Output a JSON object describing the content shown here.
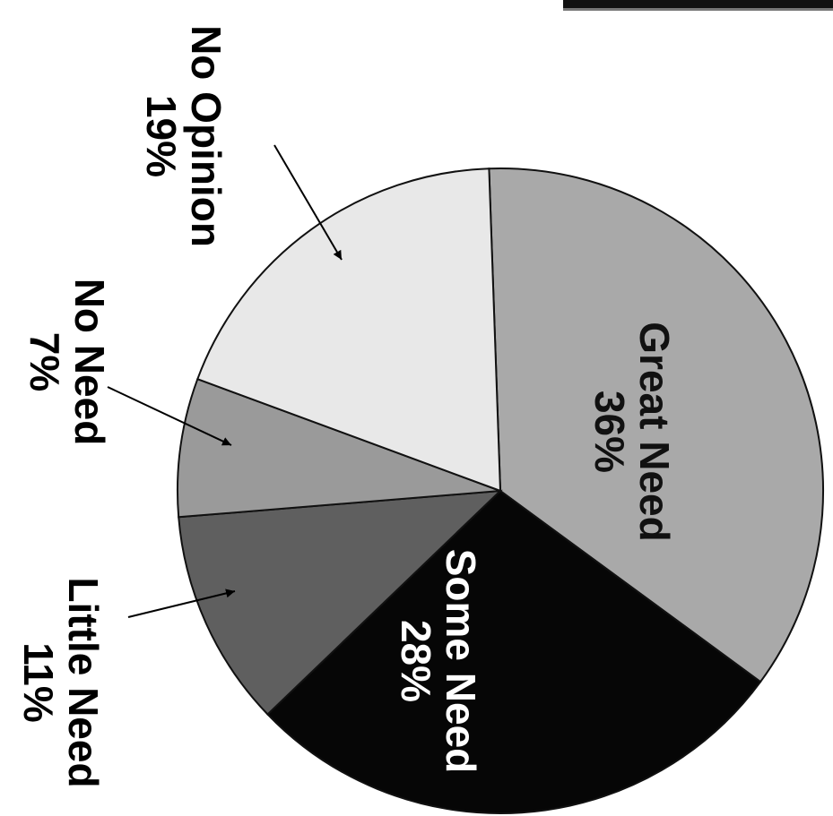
{
  "chart_data": {
    "type": "pie",
    "slices": [
      {
        "label": "Great Need",
        "pct_text": "36%",
        "value": 36,
        "color": "#a9a9a9"
      },
      {
        "label": "Some Need",
        "pct_text": "28%",
        "value": 28,
        "color": "#060606"
      },
      {
        "label": "Little Need",
        "pct_text": "11%",
        "value": 11,
        "color": "#5f5f5f"
      },
      {
        "label": "No Need",
        "pct_text": "7%",
        "value": 7,
        "color": "#9a9a9a"
      },
      {
        "label": "No Opinion",
        "pct_text": "19%",
        "value": 19,
        "color": "#e8e8e8"
      }
    ],
    "label_colors": {
      "inside_light": "#111111",
      "inside_dark": "#ffffff",
      "outside": "#000000"
    }
  }
}
